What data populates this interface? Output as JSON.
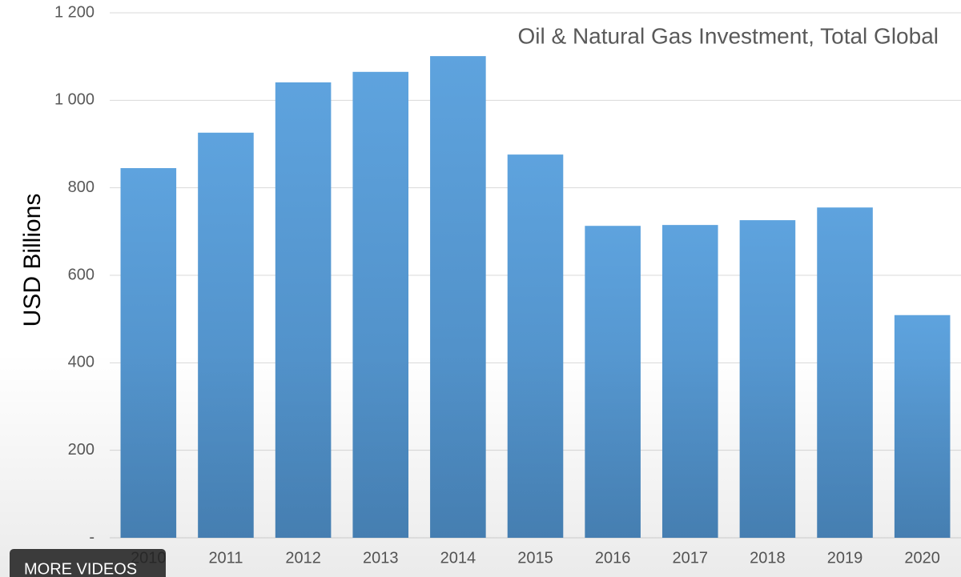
{
  "chart_data": {
    "type": "bar",
    "title": "Oil & Natural Gas Investment, Total Global",
    "y_label": "USD Billions",
    "categories": [
      "2010",
      "2011",
      "2012",
      "2013",
      "2014",
      "2015",
      "2016",
      "2017",
      "2018",
      "2019",
      "2020"
    ],
    "values": [
      845,
      926,
      1041,
      1065,
      1101,
      876,
      713,
      715,
      726,
      755,
      509
    ],
    "color": "#5b9bd5",
    "ylim": [
      0,
      1200
    ],
    "yticks": [
      {
        "value": 0,
        "label": "-"
      },
      200,
      400,
      600,
      800,
      {
        "value": 1000,
        "label": "1 000"
      },
      {
        "value": 1200,
        "label": "1 200"
      }
    ],
    "grid": true
  },
  "overlay": {
    "button": "MORE VIDEOS"
  }
}
